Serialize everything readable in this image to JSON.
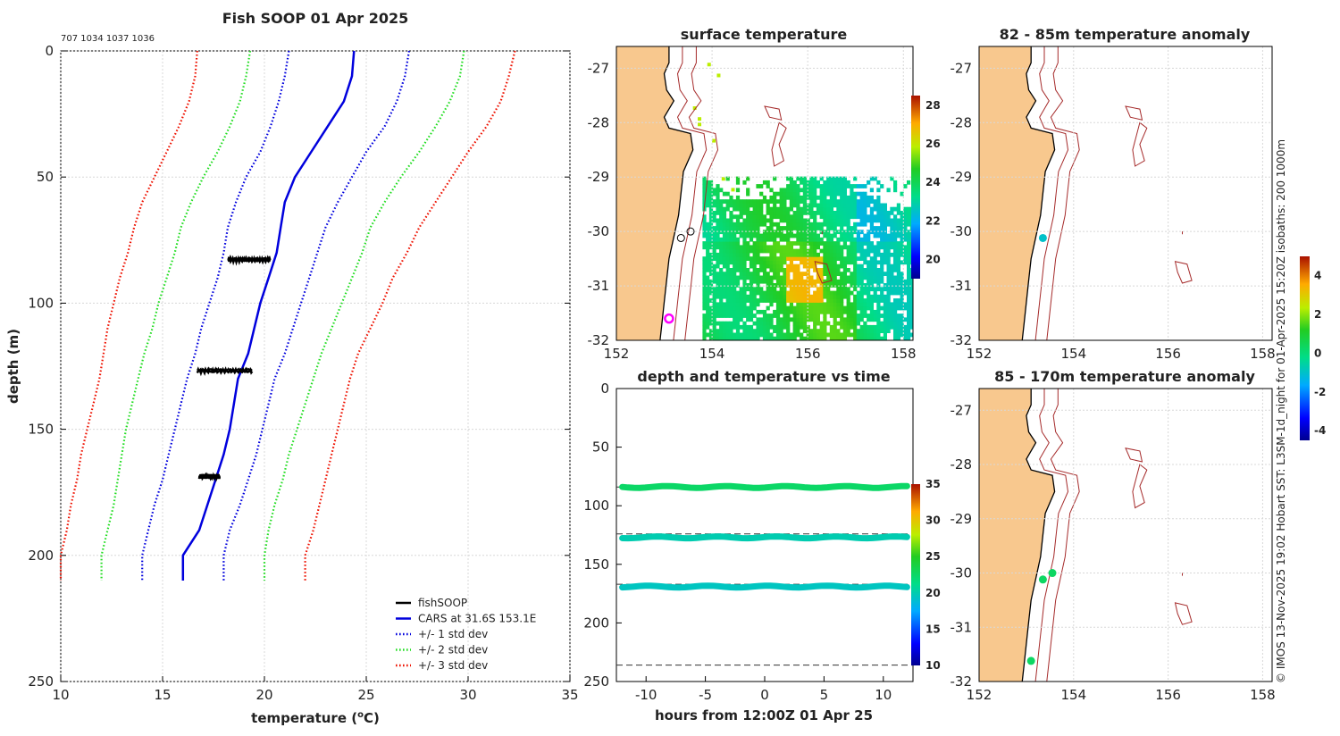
{
  "chart_data": [
    {
      "type": "line",
      "id": "profile",
      "title": "Fish SOOP 01 Apr 2025",
      "subtitle": "707 1034 1037 1036",
      "xlabel": "temperature (",
      "xlabel_sup": "o",
      "xlabel_end": "C)",
      "ylabel": "depth (m)",
      "xlim": [
        10,
        35
      ],
      "ylim": [
        0,
        250
      ],
      "y_reversed": true,
      "xticks": [
        "10",
        "15",
        "20",
        "25",
        "30",
        "35"
      ],
      "yticks": [
        "0",
        "50",
        "100",
        "150",
        "200",
        "250"
      ],
      "grid": true,
      "legend_position": "bottom-right",
      "legend": [
        "fishSOOP",
        "CARS at 31.6S 153.1E",
        "+/- 1 std dev",
        "+/- 2 std dev",
        "+/- 3 std dev"
      ],
      "depth": [
        0,
        10,
        20,
        30,
        40,
        50,
        60,
        70,
        80,
        90,
        100,
        110,
        120,
        130,
        140,
        150,
        160,
        170,
        180,
        190,
        200,
        210
      ],
      "series": [
        {
          "name": "CARS at 31.6S 153.1E",
          "color": "#0000dd",
          "style": "solid",
          "x": [
            24.4,
            24.3,
            23.9,
            23.1,
            22.3,
            21.5,
            21.0,
            20.8,
            20.6,
            20.2,
            19.8,
            19.5,
            19.2,
            18.7,
            18.5,
            18.3,
            18.0,
            17.6,
            17.2,
            16.8,
            16.0,
            16.0
          ]
        },
        {
          "name": "+1 std dev",
          "color": "#0000dd",
          "style": "dotted",
          "x": [
            27.1,
            26.9,
            26.5,
            25.9,
            25.0,
            24.3,
            23.6,
            23.0,
            22.6,
            22.2,
            21.8,
            21.4,
            21.0,
            20.5,
            20.2,
            19.9,
            19.6,
            19.2,
            18.8,
            18.3,
            18.0,
            18.0
          ]
        },
        {
          "name": "-1 std dev",
          "color": "#0000dd",
          "style": "dotted",
          "x": [
            21.2,
            21.0,
            20.7,
            20.3,
            19.8,
            19.1,
            18.6,
            18.2,
            18.0,
            17.7,
            17.3,
            16.9,
            16.6,
            16.2,
            15.9,
            15.6,
            15.3,
            15.0,
            14.6,
            14.3,
            14.0,
            14.0
          ]
        },
        {
          "name": "+2 std dev",
          "color": "#22dd22",
          "style": "dotted",
          "x": [
            29.8,
            29.6,
            29.1,
            28.4,
            27.6,
            26.7,
            25.9,
            25.2,
            24.8,
            24.3,
            23.8,
            23.3,
            22.8,
            22.4,
            22.0,
            21.6,
            21.2,
            20.9,
            20.5,
            20.2,
            20.0,
            20.0
          ]
        },
        {
          "name": "-2 std dev",
          "color": "#22dd22",
          "style": "dotted",
          "x": [
            19.3,
            19.1,
            18.8,
            18.3,
            17.7,
            17.0,
            16.4,
            15.9,
            15.6,
            15.2,
            14.8,
            14.5,
            14.1,
            13.8,
            13.5,
            13.2,
            13.0,
            12.8,
            12.6,
            12.3,
            12.0,
            12.0
          ]
        },
        {
          "name": "+3 std dev",
          "color": "#ee1100",
          "style": "dotted",
          "x": [
            32.3,
            32.0,
            31.6,
            30.9,
            30.0,
            29.2,
            28.4,
            27.6,
            27.0,
            26.3,
            25.8,
            25.2,
            24.6,
            24.2,
            23.9,
            23.6,
            23.3,
            23.0,
            22.7,
            22.4,
            22.0,
            22.0
          ]
        },
        {
          "name": "-3 std dev",
          "color": "#ee1100",
          "style": "dotted",
          "x": [
            16.7,
            16.6,
            16.3,
            15.8,
            15.2,
            14.6,
            14.0,
            13.6,
            13.3,
            12.9,
            12.6,
            12.3,
            12.1,
            11.9,
            11.6,
            11.3,
            11.0,
            10.8,
            10.5,
            10.3,
            10.0,
            10.0
          ]
        }
      ],
      "fishsoop_clusters": [
        {
          "depth": 83,
          "tmin": 18.2,
          "tmax": 20.3
        },
        {
          "depth": 127,
          "tmin": 16.7,
          "tmax": 19.4
        },
        {
          "depth": 169,
          "tmin": 16.8,
          "tmax": 17.8
        }
      ]
    },
    {
      "type": "heatmap",
      "id": "surface_map",
      "title": "surface temperature",
      "xlim": [
        152,
        158.2
      ],
      "ylim": [
        -32,
        -26.6
      ],
      "xticks": [
        "152",
        "154",
        "156",
        "158"
      ],
      "yticks": [
        "-27",
        "-28",
        "-29",
        "-30",
        "-31",
        "-32"
      ],
      "colorbar_ticks": [
        "20",
        "22",
        "24",
        "26",
        "28"
      ],
      "colorbar_range": [
        19,
        28.5
      ],
      "markers": [
        {
          "lon": 153.55,
          "lat": -30.0,
          "style": "open-circle"
        },
        {
          "lon": 153.35,
          "lat": -30.12,
          "style": "open-circle"
        },
        {
          "lon": 153.1,
          "lat": -31.6,
          "style": "magenta-ring"
        }
      ]
    },
    {
      "type": "scatter",
      "id": "depth_time",
      "title": "depth and temperature vs time",
      "xlabel": "hours from 12:00Z 01 Apr 25",
      "xlim": [
        -12.5,
        12.5
      ],
      "ylim": [
        0,
        250
      ],
      "y_reversed": true,
      "xticks": [
        "-10",
        "-5",
        "0",
        "5",
        "10"
      ],
      "yticks": [
        "0",
        "50",
        "100",
        "150",
        "200",
        "250"
      ],
      "colorbar_ticks": [
        "10",
        "15",
        "20",
        "25",
        "30",
        "35"
      ],
      "colorbar_range": [
        10,
        35
      ],
      "dashed_depths": [
        84,
        124,
        167,
        236
      ],
      "tracks": [
        {
          "depth": 84,
          "temp": 22.5
        },
        {
          "depth": 127,
          "temp": 20.0
        },
        {
          "depth": 169,
          "temp": 19.5
        }
      ]
    },
    {
      "type": "scatter",
      "id": "anom_82_85",
      "title": "82 - 85m temperature anomaly",
      "xlim": [
        152,
        158.2
      ],
      "ylim": [
        -32,
        -26.6
      ],
      "xticks": [
        "152",
        "154",
        "156",
        "158"
      ],
      "yticks": [
        "-27",
        "-28",
        "-29",
        "-30",
        "-31",
        "-32"
      ],
      "points": [
        {
          "lon": 153.35,
          "lat": -30.12,
          "anomaly": -1.0
        }
      ]
    },
    {
      "type": "scatter",
      "id": "anom_85_170",
      "title": "85 - 170m temperature anomaly",
      "xlim": [
        152,
        158.2
      ],
      "ylim": [
        -32,
        -26.6
      ],
      "xticks": [
        "152",
        "154",
        "156",
        "158"
      ],
      "yticks": [
        "-27",
        "-28",
        "-29",
        "-30",
        "-31",
        "-32"
      ],
      "points": [
        {
          "lon": 153.55,
          "lat": -30.0,
          "anomaly": 0.3
        },
        {
          "lon": 153.35,
          "lat": -30.12,
          "anomaly": 0.3
        },
        {
          "lon": 153.1,
          "lat": -31.62,
          "anomaly": 0.3
        }
      ],
      "colorbar_ticks": [
        "4",
        "2",
        "0",
        "-2",
        "-4"
      ],
      "colorbar_range": [
        -4.5,
        5
      ]
    }
  ],
  "side_note": "© IMOS 13-Nov-2025 19:02 Hobart SST: L3SM-1d_night for 01-Apr-2025 15:20Z isobaths: 200  1000m",
  "colors": {
    "land": "#f8c88e",
    "isobath": "#a52a2a",
    "coast": "#000000"
  }
}
